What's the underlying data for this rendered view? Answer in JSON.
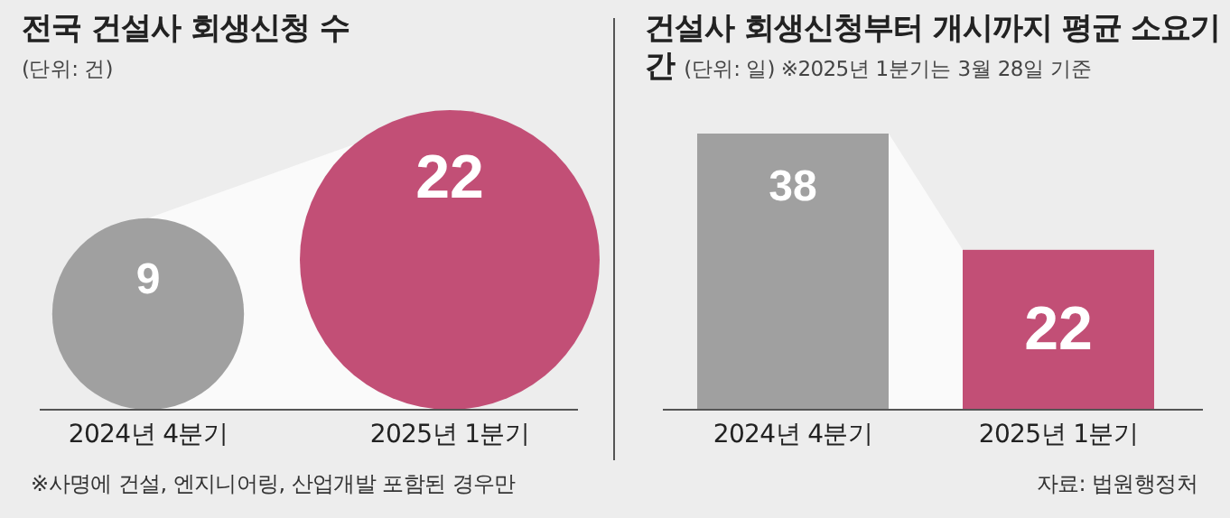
{
  "chart_data": [
    {
      "type": "other",
      "title": "전국 건설사 회생신청 수",
      "subtitle": "(단위: 건)",
      "categories": [
        "2024년 4분기",
        "2025년 1분기"
      ],
      "values": [
        9,
        22
      ],
      "colors": [
        "#a0a0a0",
        "#c24f76"
      ],
      "data_labels": true,
      "annotations": [
        "※사명에 건설, 엔지니어링, 산업개발 포함된 경우만"
      ]
    },
    {
      "type": "bar",
      "title": "건설사 회생신청부터 개시까지 평균 소요기간",
      "subtitle": "(단위: 일) ※2025년 1분기는 3월 28일 기준",
      "categories": [
        "2024년 4분기",
        "2025년 1분기"
      ],
      "values": [
        38,
        22
      ],
      "colors": [
        "#a0a0a0",
        "#c24f76"
      ],
      "data_labels": true,
      "annotations": [
        "자료: 법원행정처"
      ]
    }
  ]
}
